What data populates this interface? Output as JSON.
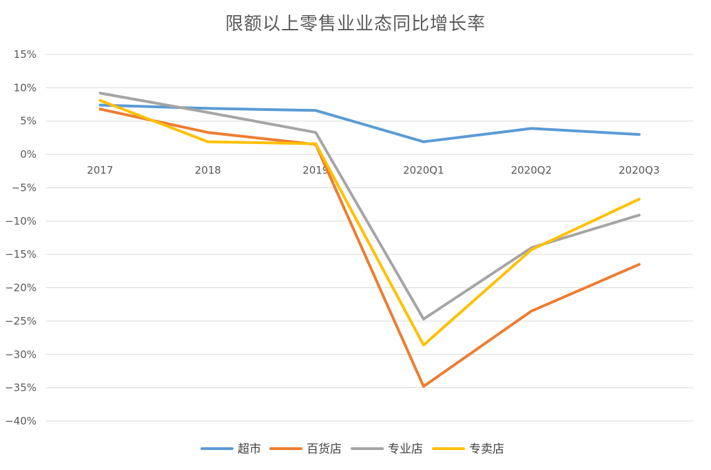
{
  "chart_data": {
    "type": "line",
    "title": "限额以上零售业业态同比增长率",
    "xlabel": "",
    "ylabel": "",
    "categories": [
      "2017",
      "2018",
      "2019",
      "2020Q1",
      "2020Q2",
      "2020Q3"
    ],
    "y_tick_labels": [
      "15%",
      "10%",
      "5%",
      "0%",
      "−5%",
      "−10%",
      "−15%",
      "−20%",
      "−25%",
      "−30%",
      "−35%",
      "−40%"
    ],
    "y_ticks": [
      15,
      10,
      5,
      0,
      -5,
      -10,
      -15,
      -20,
      -25,
      -30,
      -35,
      -40
    ],
    "ylim": [
      -40,
      15
    ],
    "y_unit": "%",
    "grid": "horizontal",
    "legend_position": "bottom",
    "series": [
      {
        "name": "超市",
        "color": "#5B9BD5",
        "values": [
          7.4,
          6.9,
          6.6,
          1.9,
          3.9,
          3.0
        ]
      },
      {
        "name": "百货店",
        "color": "#ED7D31",
        "values": [
          6.8,
          3.3,
          1.5,
          -34.8,
          -23.5,
          -16.5
        ]
      },
      {
        "name": "专业店",
        "color": "#A5A5A5",
        "values": [
          9.2,
          6.3,
          3.3,
          -24.7,
          -14.0,
          -9.1
        ]
      },
      {
        "name": "专卖店",
        "color": "#FFC000",
        "values": [
          8.1,
          1.9,
          1.6,
          -28.6,
          -14.3,
          -6.7
        ]
      }
    ]
  }
}
